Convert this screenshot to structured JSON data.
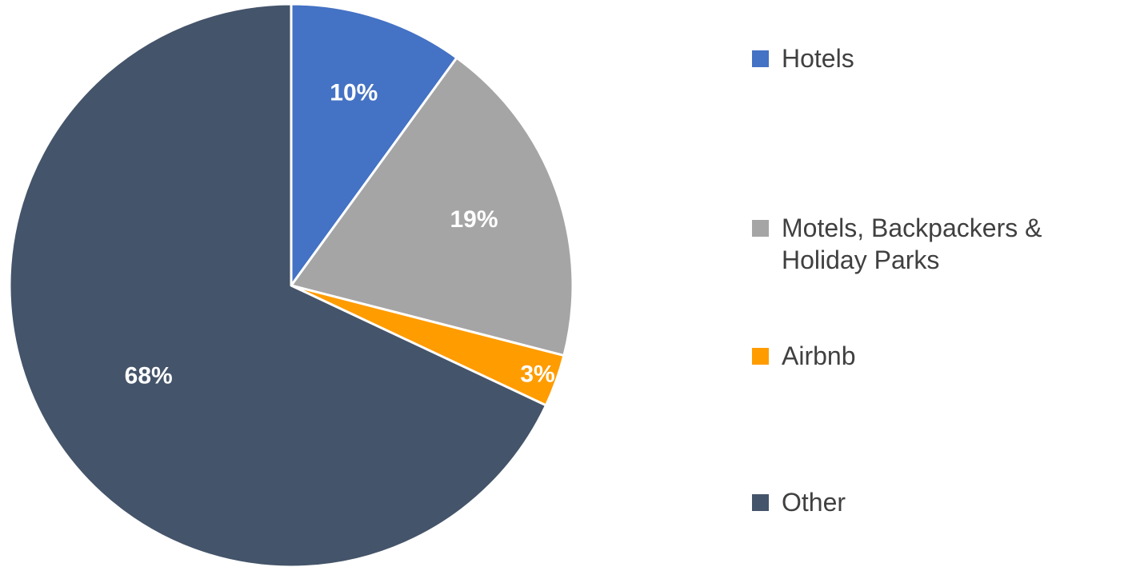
{
  "chart_data": {
    "type": "pie",
    "categories": [
      "Hotels",
      "Motels, Backpackers & Holiday Parks",
      "Airbnb",
      "Other"
    ],
    "values": [
      10,
      19,
      3,
      68
    ],
    "value_labels": [
      "10%",
      "19%",
      "3%",
      "68%"
    ],
    "colors": [
      "#4472c4",
      "#a5a5a5",
      "#ff9c00",
      "#44546a"
    ],
    "legend": "right"
  }
}
